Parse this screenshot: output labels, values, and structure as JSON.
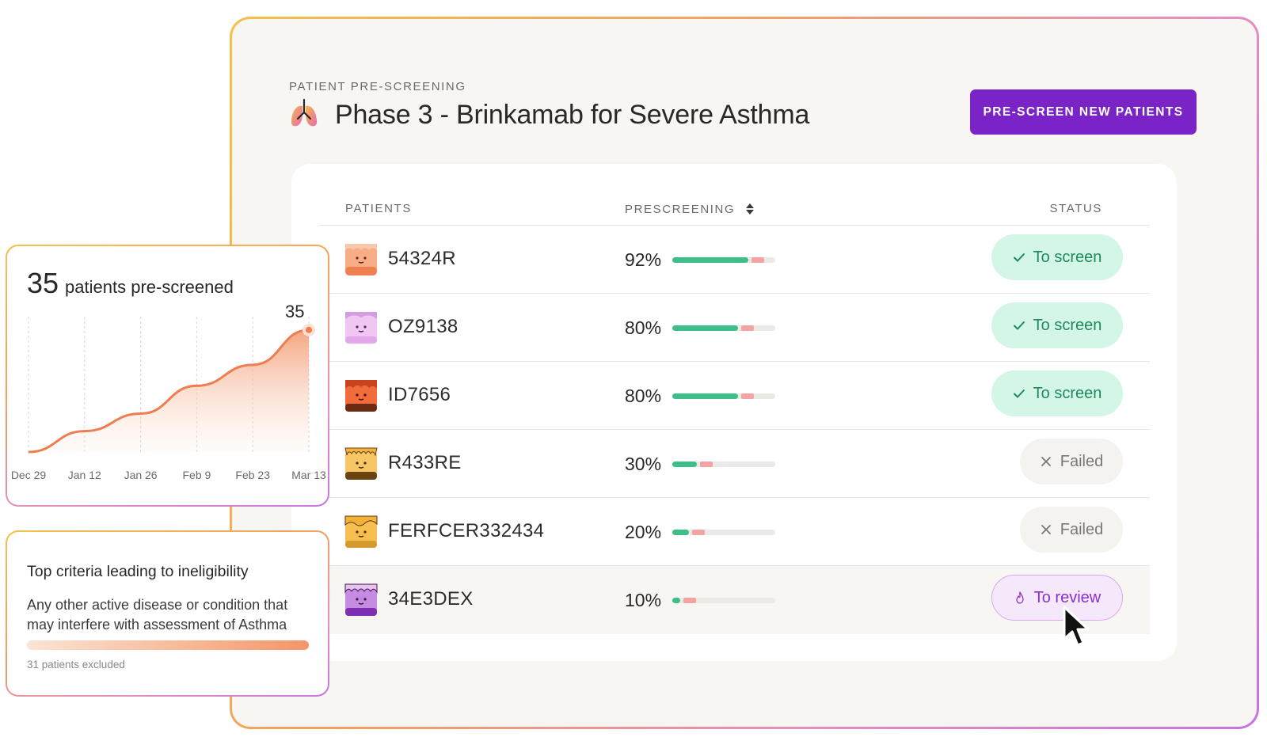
{
  "header": {
    "eyebrow": "PATIENT PRE-SCREENING",
    "title": "Phase 3 - Brinkamab for Severe Asthma",
    "cta_label": "PRE-SCREEN NEW PATIENTS"
  },
  "colors": {
    "accent": "#7a23c7",
    "progress_green": "#3dbf8a",
    "progress_red": "#f4a3a3",
    "status_screen": "#d3f6e7",
    "status_review": "#f6e8fb"
  },
  "table": {
    "columns": {
      "patients": "PATIENTS",
      "prescreening": "PRESCREENING",
      "status": "STATUS"
    },
    "rows": [
      {
        "id": "54324R",
        "pct_label": "92%",
        "progress": 0.92,
        "status": "To screen",
        "avatar_icon": "face-avatar-orange-icon"
      },
      {
        "id": "OZ9138",
        "pct_label": "80%",
        "progress": 0.8,
        "status": "To screen",
        "avatar_icon": "face-avatar-lilac-icon"
      },
      {
        "id": "ID7656",
        "pct_label": "80%",
        "progress": 0.8,
        "status": "To screen",
        "avatar_icon": "face-avatar-red-icon"
      },
      {
        "id": "R433RE",
        "pct_label": "30%",
        "progress": 0.3,
        "status": "Failed",
        "avatar_icon": "face-avatar-yellow-icon"
      },
      {
        "id": "FERFCER332434",
        "pct_label": "20%",
        "progress": 0.2,
        "status": "Failed",
        "avatar_icon": "face-avatar-gold-icon"
      },
      {
        "id": "34E3DEX",
        "pct_label": "10%",
        "progress": 0.1,
        "status": "To review",
        "avatar_icon": "face-avatar-purple-icon"
      }
    ]
  },
  "chart_card": {
    "count": "35",
    "label": "patients pre-screened",
    "point_label": "35"
  },
  "chart_data": {
    "type": "area",
    "x": [
      "Dec 29",
      "Jan 12",
      "Jan 26",
      "Feb 9",
      "Feb 23",
      "Mar 13"
    ],
    "values": [
      0,
      6,
      11,
      19,
      25,
      35
    ],
    "xlabel": "",
    "ylabel": "",
    "ylim": [
      0,
      37
    ],
    "grid": true,
    "highlight_label": "35"
  },
  "criteria_card": {
    "title": "Top criteria leading to ineligibility",
    "description": "Any other active disease or condition that may interfere with assessment of Asthma",
    "footer": "31 patients excluded"
  }
}
